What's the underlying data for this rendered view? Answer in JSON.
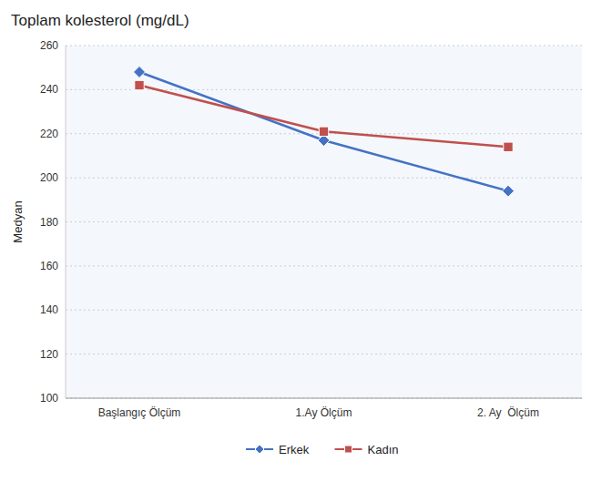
{
  "chart_data": {
    "type": "line",
    "title": "Toplam kolesterol (mg/dL)",
    "ylabel": "Medyan",
    "categories": [
      "Başlangıç Ölçüm",
      "1.Ay Ölçüm",
      "2. Ay  Ölçüm"
    ],
    "series": [
      {
        "name": "Erkek",
        "color": "#4472C4",
        "marker": "diamond",
        "values": [
          248,
          217,
          194
        ]
      },
      {
        "name": "Kadın",
        "color": "#C0504D",
        "marker": "square",
        "values": [
          242,
          221,
          214
        ]
      }
    ],
    "ylim": [
      100,
      260
    ],
    "yticks": [
      100,
      120,
      140,
      160,
      180,
      200,
      220,
      240,
      260
    ],
    "grid": true,
    "legend": "bottom"
  }
}
